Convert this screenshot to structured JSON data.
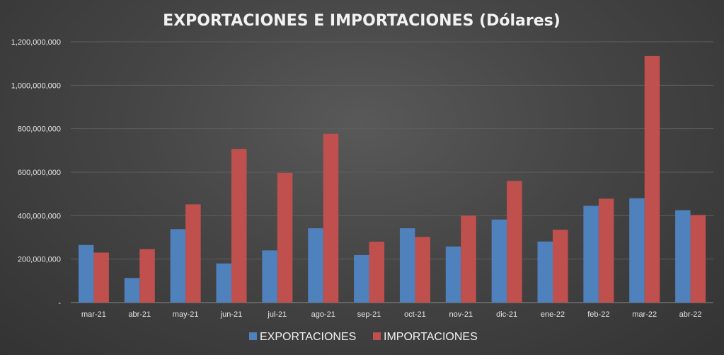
{
  "chart_data": {
    "type": "bar",
    "title": "EXPORTACIONES E IMPORTACIONES (Dólares)",
    "xlabel": "",
    "ylabel": "",
    "ylim": [
      0,
      1200000000
    ],
    "yticks": [
      0,
      200000000,
      400000000,
      600000000,
      800000000,
      1000000000,
      1200000000
    ],
    "ytick_labels": [
      "-",
      "200,000,000",
      "400,000,000",
      "600,000,000",
      "800,000,000",
      "1,000,000,000",
      "1,200,000,000"
    ],
    "grid": true,
    "legend_position": "bottom",
    "categories": [
      "mar-21",
      "abr-21",
      "may-21",
      "jun-21",
      "jul-21",
      "ago-21",
      "sep-21",
      "oct-21",
      "nov-21",
      "dic-21",
      "ene-22",
      "feb-22",
      "mar-22",
      "abr-22"
    ],
    "series": [
      {
        "name": "EXPORTACIONES",
        "color": "#4f81bd",
        "values": [
          265000000,
          113000000,
          338000000,
          180000000,
          240000000,
          342000000,
          219000000,
          342000000,
          258000000,
          382000000,
          281000000,
          445000000,
          480000000,
          425000000
        ]
      },
      {
        "name": "IMPORTACIONES",
        "color": "#c0504d",
        "values": [
          230000000,
          246000000,
          452000000,
          707000000,
          597000000,
          777000000,
          280000000,
          302000000,
          400000000,
          560000000,
          335000000,
          478000000,
          1135000000,
          403000000
        ]
      }
    ]
  }
}
